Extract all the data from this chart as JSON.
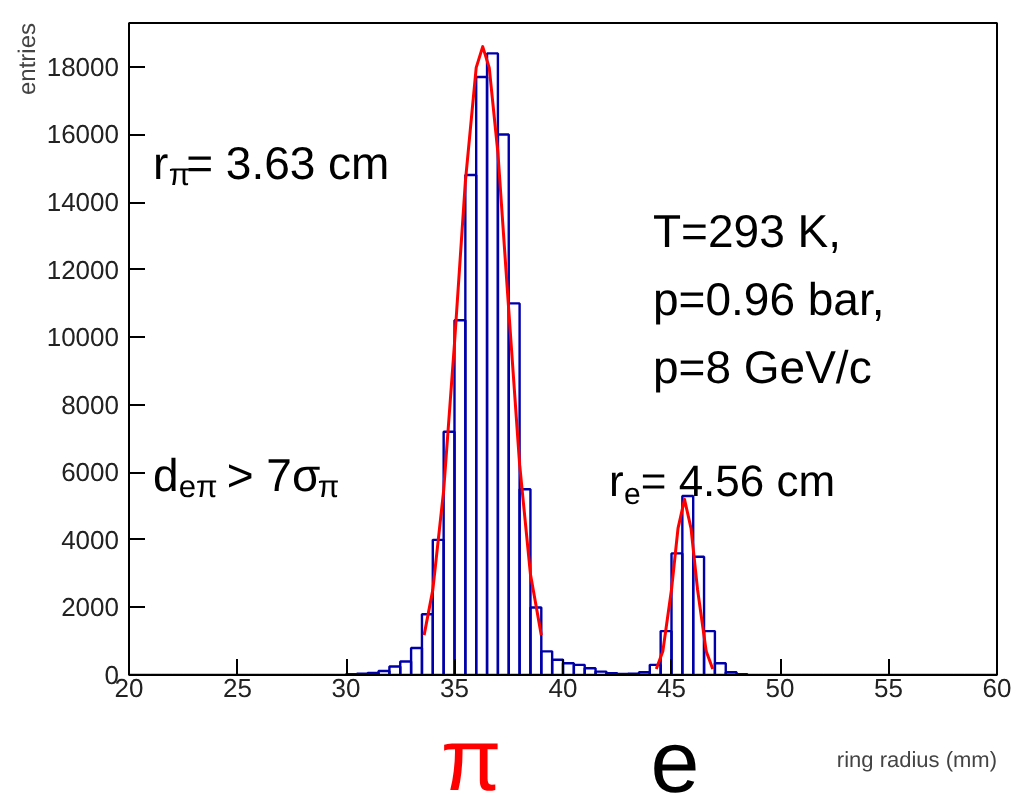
{
  "chart_data": {
    "type": "histogram",
    "xlabel": "ring radius (mm)",
    "ylabel": "entries",
    "xlim": [
      20,
      60
    ],
    "ylim": [
      0,
      19300
    ],
    "xticks": [
      20,
      25,
      30,
      35,
      40,
      45,
      50,
      55,
      60
    ],
    "yticks": [
      0,
      2000,
      4000,
      6000,
      8000,
      10000,
      12000,
      14000,
      16000,
      18000
    ],
    "grid": false,
    "series": [
      {
        "color": "#0000aa",
        "bins": [
          20,
          20.5,
          21,
          21.5,
          22,
          22.5,
          23,
          23.5,
          24,
          24.5,
          25,
          25.5,
          26,
          26.5,
          27,
          27.5,
          28,
          28.5,
          29,
          29.5,
          30,
          30.5,
          31,
          31.5,
          32,
          32.5,
          33,
          33.5,
          34,
          34.5,
          35,
          35.5,
          36,
          36.5,
          37,
          37.5,
          38,
          38.5,
          39,
          39.5,
          40,
          40.5,
          41,
          41.5,
          42,
          42.5,
          43,
          43.5,
          44,
          44.5,
          45,
          45.5,
          46,
          46.5,
          47,
          47.5,
          48,
          48.5,
          49,
          49.5,
          50,
          50.5,
          51,
          51.5,
          52,
          52.5,
          53,
          53.5,
          54,
          54.5,
          55,
          55.5,
          56,
          56.5,
          57,
          57.5,
          58,
          58.5,
          59,
          59.5,
          60
        ],
        "values": [
          0,
          0,
          0,
          0,
          0,
          0,
          0,
          0,
          0,
          0,
          0,
          0,
          0,
          0,
          0,
          0,
          0,
          0,
          0,
          0,
          20,
          40,
          60,
          120,
          250,
          400,
          800,
          1800,
          4000,
          7200,
          10500,
          14800,
          17700,
          18400,
          16000,
          11000,
          5500,
          2000,
          700,
          450,
          350,
          300,
          200,
          100,
          50,
          30,
          40,
          80,
          300,
          1300,
          3600,
          5300,
          3500,
          1300,
          350,
          80,
          20,
          0,
          0,
          0,
          0,
          0,
          0,
          0,
          0,
          0,
          0,
          0,
          0,
          0,
          0,
          0,
          0,
          0,
          0,
          0,
          0,
          0,
          0,
          0
        ]
      },
      {
        "type": "line",
        "color": "#ff0000",
        "x": [
          33.6,
          34.0,
          34.5,
          35.0,
          35.5,
          36.0,
          36.3,
          36.6,
          37.0,
          37.5,
          38.0,
          38.5,
          39.0,
          null,
          44.3,
          44.6,
          45.0,
          45.3,
          45.6,
          45.9,
          46.2,
          46.6,
          46.9
        ],
        "values": [
          1180,
          2520,
          5460,
          9820,
          14600,
          17980,
          18600,
          17980,
          15460,
          10800,
          6240,
          2980,
          1180,
          null,
          180,
          700,
          2530,
          4340,
          5200,
          4340,
          2530,
          700,
          180
        ]
      }
    ],
    "annotations": [
      "r$_{π}$= 3.63 cm",
      "d$_{eπ}$ > 7σ$_{π}$",
      "T=293 K,",
      "p=0.96 bar,",
      "p=8 GeV/c",
      "r$_{e}$= 4.56 cm",
      "π",
      "e"
    ]
  }
}
